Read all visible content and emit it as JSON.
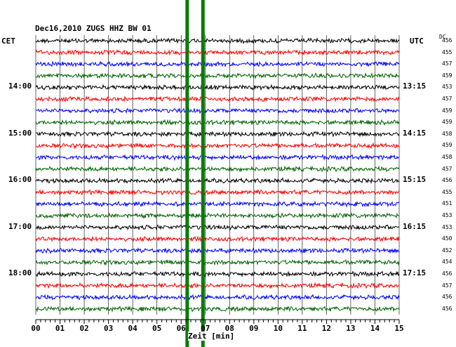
{
  "header": {
    "title": "Dec16,2010   ZUGS HHZ BW 01",
    "left_label": "CET",
    "right_label": "UTC",
    "dc_label": "DC"
  },
  "colors": {
    "trace_cycle": [
      "#000000",
      "#ff0000",
      "#0000ff",
      "#006400"
    ],
    "marker": "#0a7a0a",
    "grid": "#000000"
  },
  "chart_data": {
    "type": "line",
    "title": "Dec16,2010   ZUGS HHZ BW 01",
    "xlabel": "Zeit [min]",
    "xlim": [
      0,
      15
    ],
    "x_ticks": [
      "00",
      "01",
      "02",
      "03",
      "04",
      "05",
      "06",
      "07",
      "08",
      "09",
      "10",
      "11",
      "12",
      "13",
      "14",
      "15"
    ],
    "row_count": 24,
    "minutes_per_row": 15,
    "cet_labels": [
      {
        "row": 4,
        "text": "14:00"
      },
      {
        "row": 8,
        "text": "15:00"
      },
      {
        "row": 12,
        "text": "16:00"
      },
      {
        "row": 16,
        "text": "17:00"
      },
      {
        "row": 20,
        "text": "18:00"
      }
    ],
    "utc_labels": [
      {
        "row": 4,
        "text": "13:15"
      },
      {
        "row": 8,
        "text": "14:15"
      },
      {
        "row": 12,
        "text": "15:15"
      },
      {
        "row": 16,
        "text": "16:15"
      },
      {
        "row": 20,
        "text": "17:15"
      }
    ],
    "dc_offsets": [
      456,
      455,
      457,
      459,
      453,
      457,
      459,
      459,
      458,
      459,
      458,
      457,
      456,
      455,
      451,
      453,
      453,
      450,
      452,
      454,
      456,
      457,
      456,
      456
    ],
    "event_markers_min": [
      6.25,
      6.9
    ],
    "series": [
      {
        "color": "#000000",
        "rows": [
          0,
          4,
          8,
          12,
          16,
          20
        ]
      },
      {
        "color": "#ff0000",
        "rows": [
          1,
          5,
          9,
          13,
          17,
          21
        ]
      },
      {
        "color": "#0000ff",
        "rows": [
          2,
          6,
          10,
          14,
          18,
          22
        ]
      },
      {
        "color": "#006400",
        "rows": [
          3,
          7,
          11,
          15,
          19,
          23
        ]
      }
    ]
  }
}
